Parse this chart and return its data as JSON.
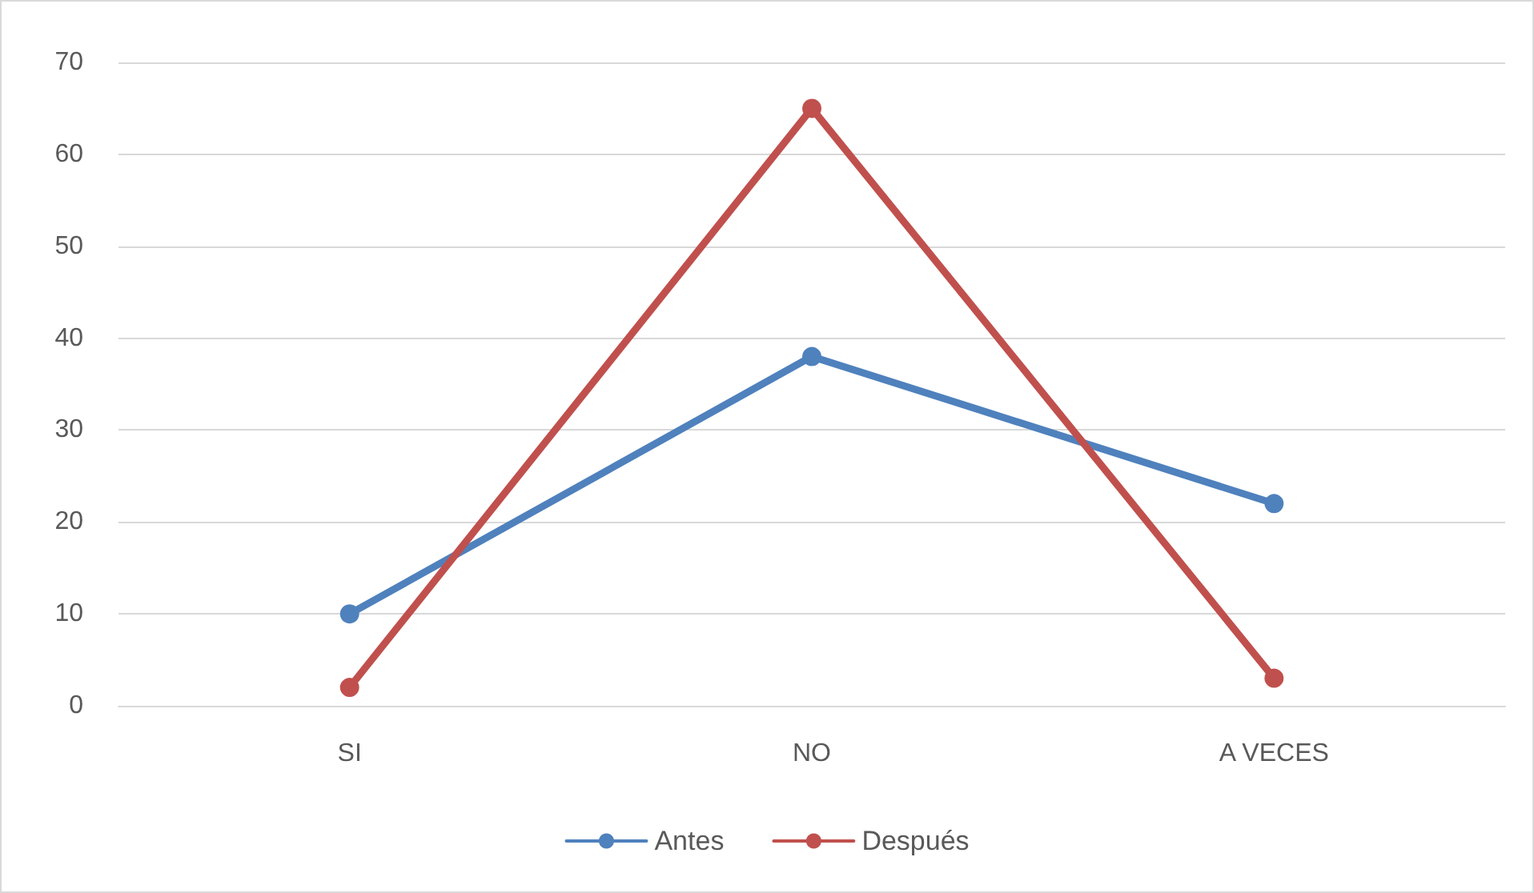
{
  "chart_data": {
    "type": "line",
    "categories": [
      "SI",
      "NO",
      "A VECES"
    ],
    "series": [
      {
        "name": "Antes",
        "color": "#4f81bd",
        "values": [
          10,
          38,
          22
        ]
      },
      {
        "name": "Después",
        "color": "#c0504d",
        "values": [
          2,
          65,
          3
        ]
      }
    ],
    "ylim": [
      0,
      70
    ],
    "yticks": [
      0,
      10,
      20,
      30,
      40,
      50,
      60,
      70
    ],
    "grid": "y",
    "legend": "bottom",
    "marker": "circle",
    "line_style": "solid"
  }
}
